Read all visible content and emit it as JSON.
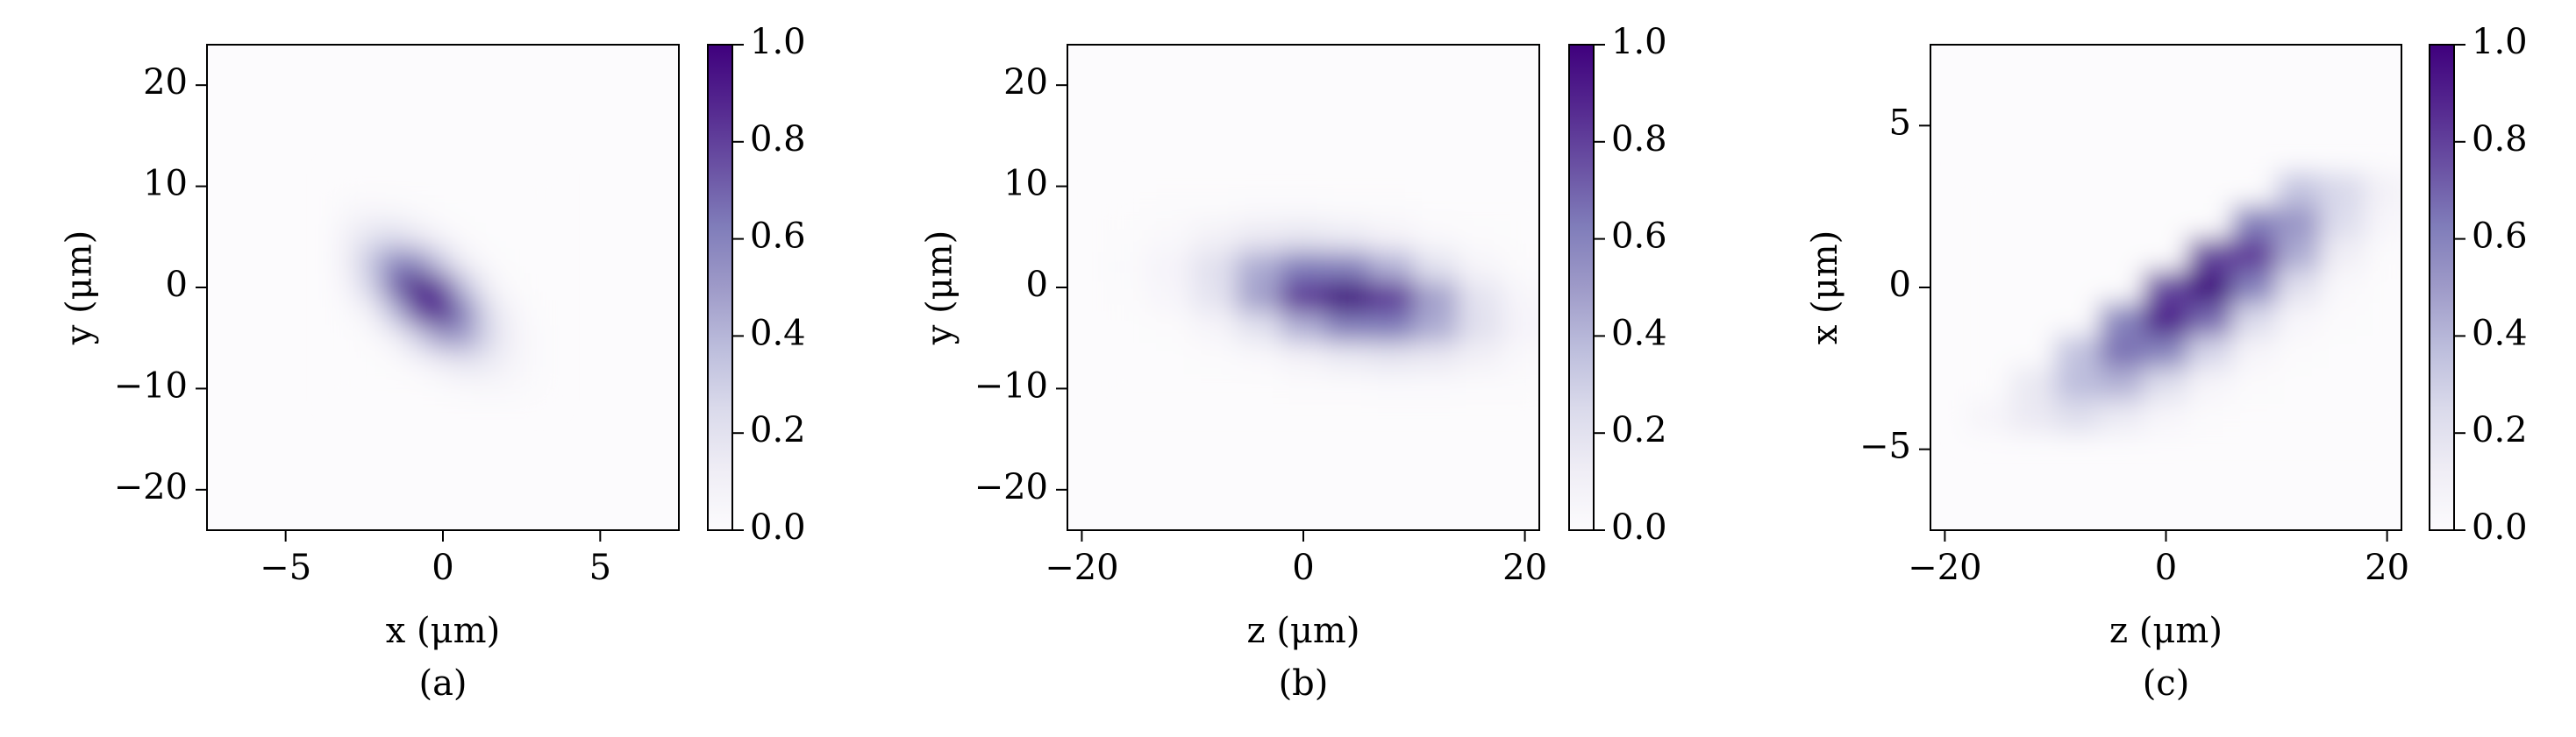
{
  "chart_data": [
    {
      "type": "heatmap",
      "caption": "(a)",
      "xlabel": "x (μm)",
      "ylabel": "y (μm)",
      "xlim": [
        -7.5,
        7.5
      ],
      "ylim": [
        -24,
        24
      ],
      "xticks": [
        {
          "value": -5,
          "label": "−5"
        },
        0,
        5
      ],
      "yticks": [
        {
          "value": -20,
          "label": "−20"
        },
        {
          "value": -10,
          "label": "−10"
        },
        0,
        10,
        20
      ],
      "colormap": [
        "#fcfbfd",
        "#efedf5",
        "#dadaeb",
        "#bcbddc",
        "#9e9ac8",
        "#807dba",
        "#6a51a3",
        "#54278f",
        "#3f007d"
      ],
      "colorbar": {
        "lim": [
          0,
          1
        ],
        "ticks": [
          {
            "value": 0,
            "label": "0.0"
          },
          0.2,
          0.4,
          0.6,
          0.8,
          {
            "value": 1,
            "label": "1.0"
          }
        ]
      },
      "x": [
        -3,
        -2.25,
        -1.5,
        -0.75,
        0,
        0.75,
        1.5,
        2.25,
        3
      ],
      "y": [
        10,
        7.5,
        5,
        2.5,
        0,
        -2.5,
        -5,
        -7.5,
        -10
      ],
      "values": [
        [
          0,
          0,
          0,
          0,
          0,
          0,
          0,
          0,
          0
        ],
        [
          0.04,
          0.05,
          0.04,
          0.02,
          0,
          0,
          0,
          0,
          0
        ],
        [
          0.1,
          0.2,
          0.23,
          0.15,
          0.06,
          0.01,
          0,
          0,
          0
        ],
        [
          0.12,
          0.35,
          0.59,
          0.55,
          0.3,
          0.09,
          0.02,
          0,
          0
        ],
        [
          0.07,
          0.29,
          0.7,
          0.96,
          0.75,
          0.34,
          0.09,
          0.01,
          0
        ],
        [
          0.02,
          0.11,
          0.39,
          0.78,
          0.89,
          0.58,
          0.22,
          0.05,
          0.01
        ],
        [
          0,
          0.02,
          0.1,
          0.3,
          0.5,
          0.47,
          0.25,
          0.08,
          0.02
        ],
        [
          0,
          0,
          0.01,
          0.05,
          0.13,
          0.18,
          0.14,
          0.06,
          0.02
        ],
        [
          0,
          0,
          0,
          0,
          0.01,
          0.03,
          0.04,
          0.03,
          0.01
        ]
      ]
    },
    {
      "type": "heatmap",
      "caption": "(b)",
      "xlabel": "z (μm)",
      "ylabel": "y (μm)",
      "xlim": [
        -21.3,
        21.3
      ],
      "ylim": [
        -24,
        24
      ],
      "xticks": [
        {
          "value": -20,
          "label": "−20"
        },
        0,
        20
      ],
      "yticks": [
        {
          "value": -20,
          "label": "−20"
        },
        {
          "value": -10,
          "label": "−10"
        },
        0,
        10,
        20
      ],
      "colormap": [
        "#fcfbfd",
        "#efedf5",
        "#dadaeb",
        "#bcbddc",
        "#9e9ac8",
        "#807dba",
        "#6a51a3",
        "#54278f",
        "#3f007d"
      ],
      "colorbar": {
        "lim": [
          0,
          1
        ],
        "ticks": [
          {
            "value": 0,
            "label": "0.0"
          },
          0.2,
          0.4,
          0.6,
          0.8,
          {
            "value": 1,
            "label": "1.0"
          }
        ]
      },
      "x": [
        -16,
        -12,
        -8,
        -4,
        0,
        4,
        8,
        12,
        16,
        20
      ],
      "y": [
        8,
        5,
        2,
        -1,
        -4,
        -7,
        -10
      ],
      "values": [
        [
          0,
          0.01,
          0.01,
          0.02,
          0.02,
          0.01,
          0.01,
          0,
          0,
          0
        ],
        [
          0.01,
          0.03,
          0.09,
          0.15,
          0.17,
          0.14,
          0.08,
          0.03,
          0.01,
          0
        ],
        [
          0.02,
          0.07,
          0.21,
          0.44,
          0.62,
          0.61,
          0.42,
          0.2,
          0.06,
          0.01
        ],
        [
          0.01,
          0.05,
          0.19,
          0.48,
          0.83,
          1,
          0.83,
          0.48,
          0.19,
          0.05
        ],
        [
          0,
          0.01,
          0.06,
          0.2,
          0.42,
          0.61,
          0.62,
          0.44,
          0.21,
          0.07
        ],
        [
          0,
          0,
          0.01,
          0.03,
          0.08,
          0.14,
          0.17,
          0.15,
          0.09,
          0.03
        ],
        [
          0,
          0,
          0,
          0,
          0.01,
          0.01,
          0.02,
          0.02,
          0.01,
          0.01
        ]
      ]
    },
    {
      "type": "heatmap",
      "caption": "(c)",
      "xlabel": "z (μm)",
      "ylabel": "x (μm)",
      "xlim": [
        -21.3,
        21.3
      ],
      "ylim": [
        -7.5,
        7.5
      ],
      "xticks": [
        {
          "value": -20,
          "label": "−20"
        },
        0,
        20
      ],
      "yticks": [
        {
          "value": -5,
          "label": "−5"
        },
        0,
        5
      ],
      "colormap": [
        "#fcfbfd",
        "#efedf5",
        "#dadaeb",
        "#bcbddc",
        "#9e9ac8",
        "#807dba",
        "#6a51a3",
        "#54278f",
        "#3f007d"
      ],
      "colorbar": {
        "lim": [
          0,
          1
        ],
        "ticks": [
          {
            "value": 0,
            "label": "0.0"
          },
          0.2,
          0.4,
          0.6,
          0.8,
          {
            "value": 1,
            "label": "1.0"
          }
        ]
      },
      "x": [
        -16,
        -12,
        -8,
        -4,
        0,
        4,
        8,
        12,
        16,
        20
      ],
      "y": [
        3,
        2,
        1,
        0,
        -1,
        -2,
        -3,
        -4
      ],
      "values": [
        [
          0,
          0,
          0,
          0,
          0,
          0,
          0,
          0.34,
          0.26,
          0.09
        ],
        [
          0,
          0,
          0,
          0,
          0,
          0,
          0.61,
          0.52,
          0.23,
          0.05
        ],
        [
          0,
          0,
          0,
          0,
          0,
          0.78,
          0.82,
          0.44,
          0.12,
          0.01
        ],
        [
          0,
          0,
          0,
          0,
          0.77,
          0.99,
          0.61,
          0.21,
          0.03,
          0
        ],
        [
          0,
          0,
          0,
          0.59,
          0.92,
          0.69,
          0.25,
          0.05,
          0.01,
          0
        ],
        [
          0,
          0,
          0.35,
          0.66,
          0.6,
          0.27,
          0.06,
          0.01,
          0,
          0
        ],
        [
          0,
          0.16,
          0.37,
          0.41,
          0.22,
          0.06,
          0.01,
          0,
          0,
          0
        ],
        [
          0.06,
          0.15,
          0.22,
          0.14,
          0.05,
          0.01,
          0,
          0,
          0,
          0
        ]
      ]
    }
  ]
}
